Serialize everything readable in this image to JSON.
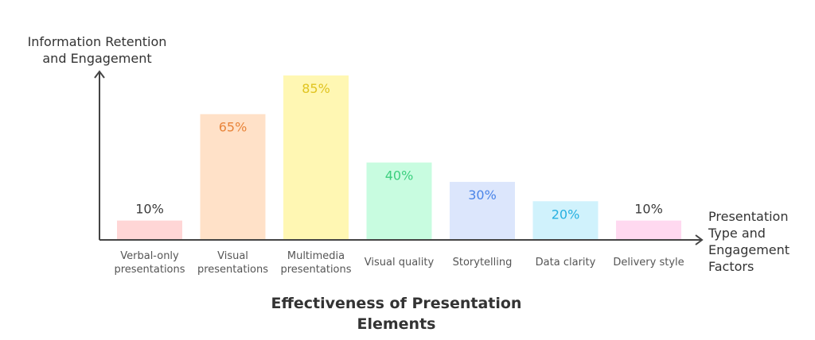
{
  "chart_data": {
    "type": "bar",
    "title": "Effectiveness of Presentation Elements",
    "ylabel": "Information Retention and Engagement",
    "xlabel": "Presentation Type and Engagement Factors",
    "ylim": [
      0,
      100
    ],
    "grid": false,
    "categories": [
      "Verbal-only presentations",
      "Visual presentations",
      "Multimedia presentations",
      "Visual quality",
      "Storytelling",
      "Data clarity",
      "Delivery style"
    ],
    "values": [
      10,
      65,
      85,
      40,
      30,
      20,
      10
    ],
    "value_labels": [
      "10%",
      "65%",
      "85%",
      "40%",
      "30%",
      "20%",
      "10%"
    ],
    "bar_colors": [
      "#ffd6d6",
      "#ffe1c8",
      "#fff7b3",
      "#c8fce0",
      "#dce6fc",
      "#d0f2fc",
      "#ffd9f0"
    ],
    "label_colors": [
      "#3a3a3a",
      "#e8843a",
      "#e0c420",
      "#3ccf7e",
      "#4a84e8",
      "#26b0e0",
      "#3a3a3a"
    ]
  }
}
